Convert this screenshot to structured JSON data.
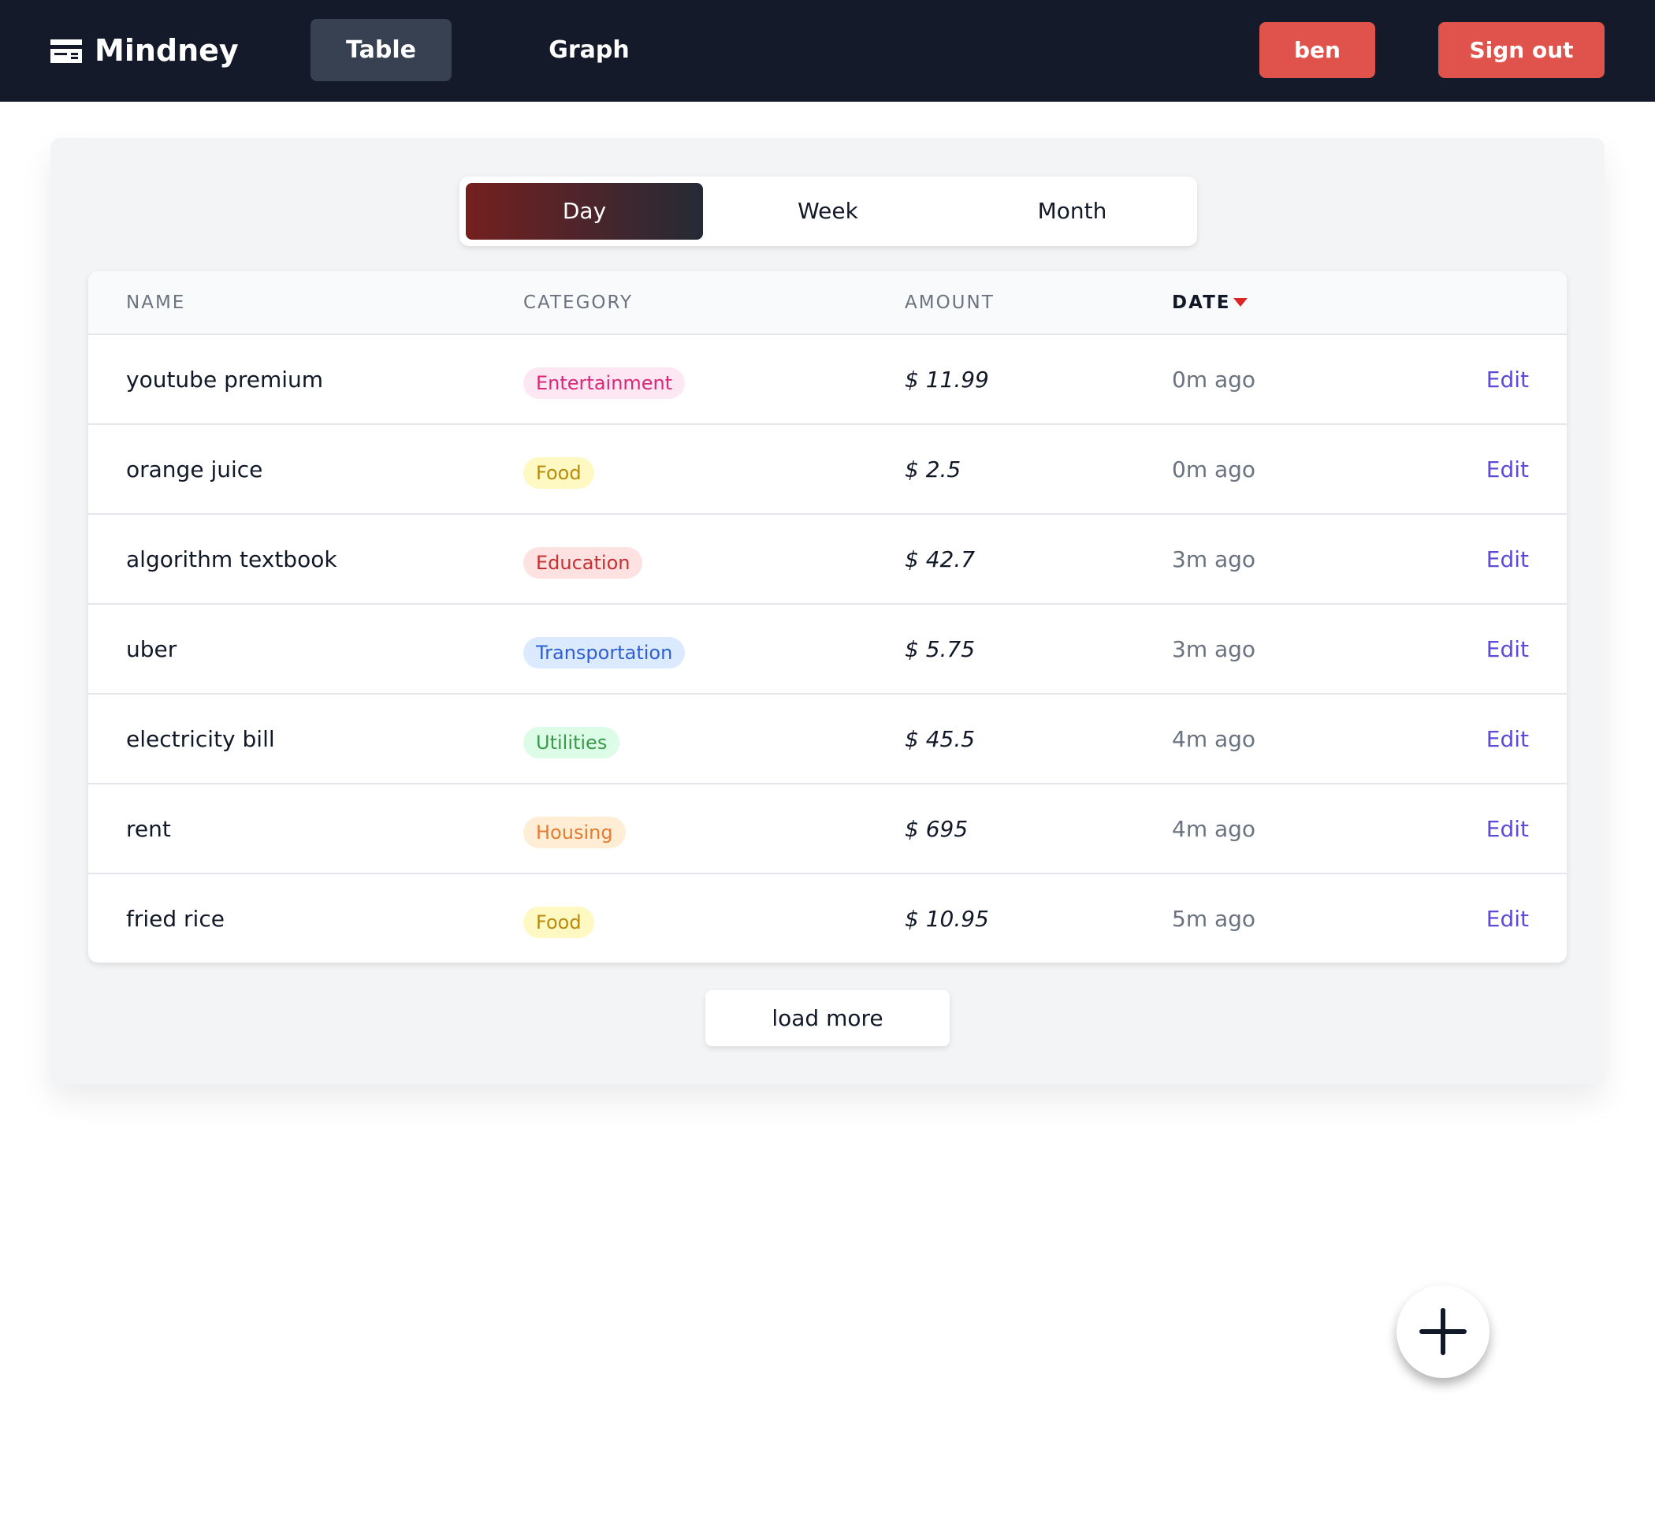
{
  "header": {
    "brand": "Mindney",
    "nav": [
      "Table",
      "Graph"
    ],
    "user": "ben",
    "sign_out": "Sign out"
  },
  "tabs": [
    "Day",
    "Week",
    "Month"
  ],
  "table": {
    "columns": [
      "NAME",
      "CATEGORY",
      "AMOUNT",
      "DATE"
    ],
    "rows": [
      [
        "youtube premium",
        "Entertainment",
        "$ 11.99",
        "0m ago",
        "Edit"
      ],
      [
        "orange juice",
        "Food",
        "$ 2.5",
        "0m ago",
        "Edit"
      ],
      [
        "algorithm textbook",
        "Education",
        "$ 42.7",
        "3m ago",
        "Edit"
      ],
      [
        "uber",
        "Transportation",
        "$ 5.75",
        "3m ago",
        "Edit"
      ],
      [
        "electricity bill",
        "Utilities",
        "$ 45.5",
        "4m ago",
        "Edit"
      ],
      [
        "rent",
        "Housing",
        "$ 695",
        "4m ago",
        "Edit"
      ],
      [
        "fried rice",
        "Food",
        "$ 10.95",
        "5m ago",
        "Edit"
      ]
    ]
  },
  "load_more": "load more"
}
